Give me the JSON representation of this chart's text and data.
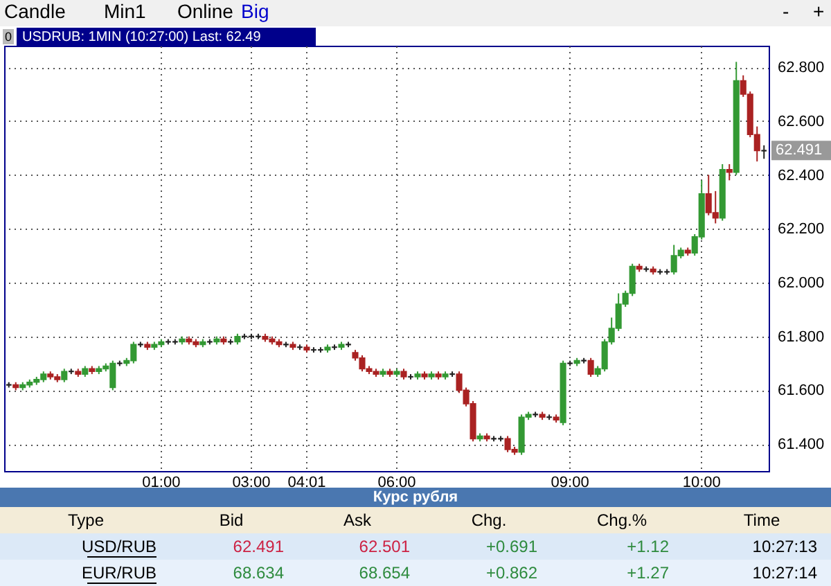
{
  "chart_data": {
    "type": "candlestick",
    "title": "USDRUB: 1MIN (10:27:00) Last: 62.49",
    "categories": [
      null,
      null,
      null,
      null,
      null,
      null,
      null,
      null,
      null,
      null,
      null,
      null,
      null,
      null,
      null,
      null,
      null,
      null,
      null,
      null,
      null,
      null,
      "01:00",
      null,
      null,
      null,
      null,
      null,
      null,
      null,
      null,
      null,
      null,
      null,
      null,
      "03:00",
      null,
      null,
      null,
      null,
      null,
      null,
      null,
      "04:01",
      null,
      null,
      null,
      null,
      null,
      null,
      null,
      null,
      null,
      null,
      null,
      null,
      "06:00",
      null,
      null,
      null,
      null,
      null,
      null,
      null,
      null,
      null,
      null,
      null,
      null,
      null,
      null,
      null,
      null,
      null,
      null,
      null,
      null,
      null,
      null,
      null,
      null,
      "09:00",
      null,
      null,
      null,
      null,
      null,
      null,
      null,
      null,
      null,
      null,
      null,
      null,
      null,
      null,
      null,
      null,
      null,
      null,
      "10:00",
      null,
      null,
      null,
      null,
      null,
      null,
      null,
      null,
      null
    ],
    "ohlc": [
      [
        61.62,
        61.63,
        61.61,
        61.62
      ],
      [
        61.62,
        61.63,
        61.6,
        61.61
      ],
      [
        61.61,
        61.63,
        61.6,
        61.62
      ],
      [
        61.62,
        61.64,
        61.61,
        61.63
      ],
      [
        61.63,
        61.65,
        61.62,
        61.64
      ],
      [
        61.64,
        61.67,
        61.63,
        61.66
      ],
      [
        61.66,
        61.67,
        61.64,
        61.65
      ],
      [
        61.65,
        61.66,
        61.63,
        61.64
      ],
      [
        61.64,
        61.68,
        61.63,
        61.67
      ],
      [
        61.67,
        61.68,
        61.66,
        61.67
      ],
      [
        61.67,
        61.68,
        61.65,
        61.66
      ],
      [
        61.66,
        61.69,
        61.65,
        61.68
      ],
      [
        61.68,
        61.69,
        61.66,
        61.67
      ],
      [
        61.67,
        61.69,
        61.66,
        61.68
      ],
      [
        61.68,
        61.7,
        61.67,
        61.69
      ],
      [
        61.61,
        61.71,
        61.6,
        61.7
      ],
      [
        61.7,
        61.71,
        61.69,
        61.7
      ],
      [
        61.7,
        61.72,
        61.69,
        61.71
      ],
      [
        61.71,
        61.78,
        61.7,
        61.77
      ],
      [
        61.77,
        61.78,
        61.76,
        61.77
      ],
      [
        61.77,
        61.78,
        61.75,
        61.76
      ],
      [
        61.76,
        61.78,
        61.75,
        61.77
      ],
      [
        61.77,
        61.79,
        61.76,
        61.78
      ],
      [
        61.78,
        61.79,
        61.77,
        61.78
      ],
      [
        61.78,
        61.79,
        61.77,
        61.78
      ],
      [
        61.78,
        61.8,
        61.77,
        61.79
      ],
      [
        61.79,
        61.8,
        61.77,
        61.78
      ],
      [
        61.78,
        61.79,
        61.76,
        61.77
      ],
      [
        61.77,
        61.79,
        61.76,
        61.78
      ],
      [
        61.78,
        61.79,
        61.77,
        61.78
      ],
      [
        61.78,
        61.8,
        61.77,
        61.79
      ],
      [
        61.79,
        61.8,
        61.77,
        61.78
      ],
      [
        61.78,
        61.79,
        61.77,
        61.78
      ],
      [
        61.78,
        61.81,
        61.77,
        61.8
      ],
      [
        61.8,
        61.81,
        61.79,
        61.8
      ],
      [
        61.8,
        61.81,
        61.79,
        61.8
      ],
      [
        61.8,
        61.81,
        61.79,
        61.8
      ],
      [
        61.8,
        61.81,
        61.78,
        61.79
      ],
      [
        61.79,
        61.8,
        61.77,
        61.78
      ],
      [
        61.78,
        61.79,
        61.76,
        61.77
      ],
      [
        61.77,
        61.78,
        61.76,
        61.77
      ],
      [
        61.77,
        61.78,
        61.75,
        61.76
      ],
      [
        61.76,
        61.77,
        61.75,
        61.76
      ],
      [
        61.76,
        61.77,
        61.74,
        61.75
      ],
      [
        61.75,
        61.76,
        61.74,
        61.75
      ],
      [
        61.75,
        61.76,
        61.74,
        61.75
      ],
      [
        61.75,
        61.77,
        61.74,
        61.76
      ],
      [
        61.76,
        61.77,
        61.75,
        61.76
      ],
      [
        61.76,
        61.78,
        61.75,
        61.77
      ],
      [
        61.77,
        61.78,
        61.76,
        61.77
      ],
      [
        61.74,
        61.75,
        61.71,
        61.72
      ],
      [
        61.72,
        61.73,
        61.67,
        61.68
      ],
      [
        61.68,
        61.69,
        61.66,
        61.67
      ],
      [
        61.67,
        61.68,
        61.65,
        61.66
      ],
      [
        61.66,
        61.68,
        61.65,
        61.67
      ],
      [
        61.67,
        61.68,
        61.65,
        61.66
      ],
      [
        61.66,
        61.68,
        61.65,
        61.67
      ],
      [
        61.67,
        61.68,
        61.64,
        61.65
      ],
      [
        61.65,
        61.66,
        61.64,
        61.65
      ],
      [
        61.65,
        61.67,
        61.64,
        61.66
      ],
      [
        61.66,
        61.67,
        61.64,
        61.65
      ],
      [
        61.65,
        61.67,
        61.64,
        61.66
      ],
      [
        61.66,
        61.67,
        61.64,
        61.65
      ],
      [
        61.65,
        61.67,
        61.64,
        61.66
      ],
      [
        61.66,
        61.67,
        61.65,
        61.66
      ],
      [
        61.66,
        61.67,
        61.59,
        61.6
      ],
      [
        61.6,
        61.61,
        61.54,
        61.55
      ],
      [
        61.55,
        61.56,
        61.41,
        61.42
      ],
      [
        61.42,
        61.44,
        61.41,
        61.43
      ],
      [
        61.43,
        61.44,
        61.41,
        61.42
      ],
      [
        61.42,
        61.43,
        61.41,
        61.42
      ],
      [
        61.42,
        61.43,
        61.41,
        61.42
      ],
      [
        61.42,
        61.43,
        61.37,
        61.38
      ],
      [
        61.38,
        61.39,
        61.36,
        61.37
      ],
      [
        61.37,
        61.51,
        61.36,
        61.5
      ],
      [
        61.5,
        61.52,
        61.49,
        61.51
      ],
      [
        61.51,
        61.52,
        61.5,
        61.51
      ],
      [
        61.51,
        61.52,
        61.49,
        61.5
      ],
      [
        61.5,
        61.51,
        61.49,
        61.5
      ],
      [
        61.5,
        61.51,
        61.48,
        61.49
      ],
      [
        61.48,
        61.71,
        61.47,
        61.7
      ],
      [
        61.7,
        61.71,
        61.69,
        61.7
      ],
      [
        61.7,
        61.72,
        61.69,
        61.71
      ],
      [
        61.71,
        61.72,
        61.7,
        61.71
      ],
      [
        61.71,
        61.72,
        61.65,
        61.66
      ],
      [
        61.66,
        61.69,
        61.65,
        61.68
      ],
      [
        61.68,
        61.79,
        61.67,
        61.78
      ],
      [
        61.78,
        61.87,
        61.77,
        61.83
      ],
      [
        61.83,
        61.96,
        61.82,
        61.92
      ],
      [
        61.92,
        61.97,
        61.91,
        61.96
      ],
      [
        61.96,
        62.07,
        61.95,
        62.06
      ],
      [
        62.06,
        62.07,
        62.04,
        62.05
      ],
      [
        62.05,
        62.06,
        62.04,
        62.05
      ],
      [
        62.05,
        62.06,
        62.03,
        62.04
      ],
      [
        62.04,
        62.05,
        62.03,
        62.04
      ],
      [
        62.04,
        62.05,
        62.03,
        62.04
      ],
      [
        62.04,
        62.14,
        62.03,
        62.1
      ],
      [
        62.1,
        62.13,
        62.09,
        62.12
      ],
      [
        62.12,
        62.13,
        62.1,
        62.11
      ],
      [
        62.11,
        62.18,
        62.1,
        62.17
      ],
      [
        62.17,
        62.38,
        62.16,
        62.33
      ],
      [
        62.33,
        62.4,
        62.25,
        62.26
      ],
      [
        62.26,
        62.34,
        62.22,
        62.24
      ],
      [
        62.24,
        62.44,
        62.23,
        62.42
      ],
      [
        62.42,
        62.44,
        62.38,
        62.41
      ],
      [
        62.41,
        62.82,
        62.4,
        62.75
      ],
      [
        62.75,
        62.77,
        62.69,
        62.7
      ],
      [
        62.7,
        62.71,
        62.54,
        62.55
      ],
      [
        62.55,
        62.58,
        62.45,
        62.49
      ],
      [
        62.49,
        62.51,
        62.46,
        62.49
      ]
    ],
    "colors": [
      "#222222",
      "#aa2222",
      "#339933",
      "#339933",
      "#339933",
      "#339933",
      "#aa2222",
      "#aa2222",
      "#339933",
      "#222222",
      "#aa2222",
      "#339933",
      "#aa2222",
      "#339933",
      "#339933",
      "#339933",
      "#222222",
      "#339933",
      "#339933",
      "#222222",
      "#aa2222",
      "#339933",
      "#339933",
      "#222222",
      "#222222",
      "#339933",
      "#aa2222",
      "#aa2222",
      "#339933",
      "#222222",
      "#339933",
      "#aa2222",
      "#222222",
      "#339933",
      "#222222",
      "#222222",
      "#222222",
      "#aa2222",
      "#aa2222",
      "#aa2222",
      "#222222",
      "#aa2222",
      "#222222",
      "#aa2222",
      "#222222",
      "#222222",
      "#339933",
      "#222222",
      "#339933",
      "#222222",
      "#aa2222",
      "#aa2222",
      "#aa2222",
      "#aa2222",
      "#339933",
      "#aa2222",
      "#339933",
      "#aa2222",
      "#222222",
      "#339933",
      "#aa2222",
      "#339933",
      "#aa2222",
      "#339933",
      "#222222",
      "#aa2222",
      "#aa2222",
      "#aa2222",
      "#339933",
      "#aa2222",
      "#222222",
      "#222222",
      "#aa2222",
      "#aa2222",
      "#339933",
      "#339933",
      "#222222",
      "#aa2222",
      "#222222",
      "#aa2222",
      "#339933",
      "#222222",
      "#339933",
      "#222222",
      "#aa2222",
      "#339933",
      "#339933",
      "#339933",
      "#339933",
      "#339933",
      "#339933",
      "#aa2222",
      "#222222",
      "#aa2222",
      "#222222",
      "#222222",
      "#339933",
      "#339933",
      "#aa2222",
      "#339933",
      "#339933",
      "#aa2222",
      "#aa2222",
      "#339933",
      "#aa2222",
      "#339933",
      "#aa2222",
      "#aa2222",
      "#aa2222",
      "#222222"
    ],
    "ylim": [
      61.3,
      62.88
    ],
    "yticks": [
      {
        "value": 61.4,
        "label": "61.400"
      },
      {
        "value": 61.6,
        "label": "61.600"
      },
      {
        "value": 61.8,
        "label": "61.800"
      },
      {
        "value": 62.0,
        "label": "62.000"
      },
      {
        "value": 62.2,
        "label": "62.200"
      },
      {
        "value": 62.4,
        "label": "62.400"
      },
      {
        "value": 62.6,
        "label": "62.600"
      },
      {
        "value": 62.8,
        "label": "62.800"
      }
    ],
    "grid": true,
    "annotations": [
      "Candle",
      "Min1",
      "Online",
      "Big",
      "-",
      "+",
      "0",
      "Курс рубля",
      "Type",
      "Bid",
      "Ask",
      "Chg.",
      "Chg.%",
      "Time",
      "USD/RUB",
      "62.491",
      "62.501",
      "+0.691",
      "+1.12",
      "10:27:13",
      "EUR/RUB",
      "68.634",
      "68.654",
      "+0.862",
      "+1.27",
      "10:27:14",
      {
        "text": "62.491",
        "y": 62.491
      }
    ]
  }
}
